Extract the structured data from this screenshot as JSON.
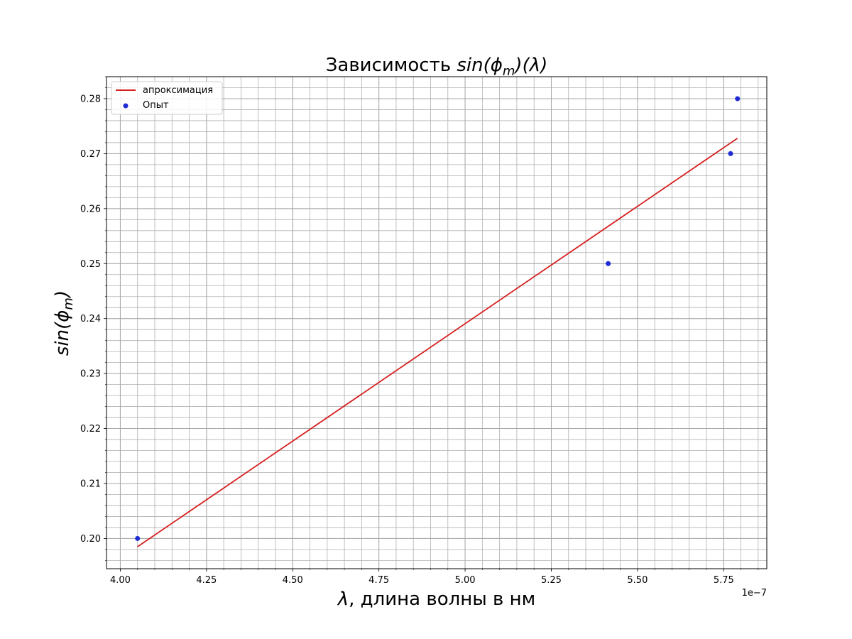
{
  "chart_data": {
    "type": "scatter",
    "title_main": "Зависимость ",
    "title_math": "sin(ϕ",
    "title_math_sub": "m",
    "title_math_tail": ")(λ)",
    "xlabel_math": "λ",
    "xlabel_text": ", длина волны в нм",
    "ylabel_math": "sin(ϕ",
    "ylabel_math_sub": "m",
    "ylabel_math_tail": ")",
    "x_offset_label": "1e−7",
    "xlim": [
      3.96e-07,
      5.875e-07
    ],
    "ylim": [
      0.1945,
      0.284
    ],
    "x_ticks": [
      4.0,
      4.25,
      4.5,
      4.75,
      5.0,
      5.25,
      5.5,
      5.75
    ],
    "x_tick_labels": [
      "4.00",
      "4.25",
      "4.50",
      "4.75",
      "5.00",
      "5.25",
      "5.50",
      "5.75"
    ],
    "x_tick_scale": 1e-07,
    "y_ticks": [
      0.2,
      0.21,
      0.22,
      0.23,
      0.24,
      0.25,
      0.26,
      0.27,
      0.28
    ],
    "y_tick_labels": [
      "0.20",
      "0.21",
      "0.22",
      "0.23",
      "0.24",
      "0.25",
      "0.26",
      "0.27",
      "0.28"
    ],
    "grid": true,
    "minor_grid": true,
    "legend_position": "top-left",
    "series": [
      {
        "name": "апроксимация",
        "kind": "line",
        "color": "#d62020",
        "x": [
          4.05e-07,
          5.79e-07
        ],
        "y": [
          0.1985,
          0.2728
        ]
      },
      {
        "name": "Опыт",
        "kind": "scatter",
        "color": "#1f2bd4",
        "x": [
          4.05e-07,
          5.415e-07,
          5.77e-07,
          5.79e-07
        ],
        "y": [
          0.2,
          0.25,
          0.27,
          0.28
        ]
      }
    ]
  }
}
